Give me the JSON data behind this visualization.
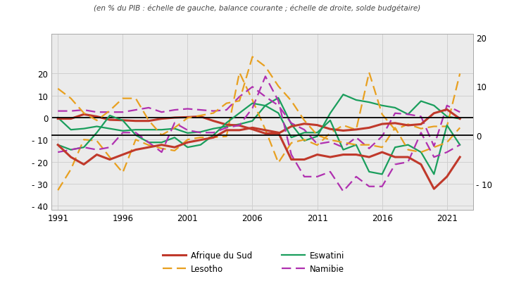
{
  "subtitle": "(en % du PIB : échelle de gauche, balance courante ; échelle de droite, solde budgétaire)",
  "years": [
    1991,
    1992,
    1993,
    1994,
    1995,
    1996,
    1997,
    1998,
    1999,
    2000,
    2001,
    2002,
    2003,
    2004,
    2005,
    2006,
    2007,
    2008,
    2009,
    2010,
    2011,
    2012,
    2013,
    2014,
    2015,
    2016,
    2017,
    2018,
    2019,
    2020,
    2021,
    2022
  ],
  "ca_zaf": [
    -0.5,
    -0.5,
    1.5,
    0.5,
    -1.0,
    -1.2,
    -1.5,
    -1.5,
    -0.5,
    0.0,
    0.2,
    0.5,
    -1.5,
    -3.2,
    -3.6,
    -5.3,
    -7.2,
    -7.2,
    -4.0,
    -2.8,
    -3.4,
    -5.2,
    -5.9,
    -5.4,
    -4.6,
    -2.9,
    -2.5,
    -3.5,
    -3.0,
    2.0,
    3.7,
    -0.5
  ],
  "ca_esw": [
    0.0,
    -5.5,
    -5.0,
    -4.0,
    -5.0,
    -6.0,
    -5.5,
    -5.5,
    -5.5,
    -5.0,
    -7.0,
    -6.5,
    -5.0,
    -4.0,
    -3.0,
    -1.5,
    5.5,
    9.0,
    -3.0,
    -10.5,
    -8.5,
    2.0,
    10.5,
    8.0,
    7.0,
    5.5,
    4.5,
    1.5,
    7.5,
    5.5,
    0.5,
    -0.5
  ],
  "ca_les": [
    -33.0,
    -23.5,
    -10.0,
    -10.5,
    -18.0,
    -25.0,
    -10.0,
    -12.5,
    -14.0,
    -15.0,
    -10.0,
    -9.0,
    -9.0,
    -8.5,
    20.5,
    8.0,
    -5.5,
    -20.5,
    -11.5,
    -10.0,
    -12.5,
    -7.0,
    -3.5,
    -5.5,
    20.5,
    1.5,
    -5.5,
    -3.0,
    -5.0,
    -4.0,
    -4.0,
    20.0
  ],
  "ca_nam": [
    3.0,
    3.0,
    3.5,
    2.5,
    2.5,
    2.5,
    3.5,
    4.5,
    2.5,
    3.5,
    4.0,
    3.5,
    3.0,
    3.5,
    9.5,
    14.0,
    9.5,
    5.5,
    -2.5,
    -5.5,
    -12.0,
    -11.0,
    -13.5,
    -9.0,
    -14.0,
    -8.5,
    2.0,
    1.5,
    0.5,
    -13.0,
    5.5,
    2.5
  ],
  "bb_zaf": [
    -2.0,
    -4.5,
    -6.0,
    -4.0,
    -5.0,
    -4.0,
    -3.0,
    -2.5,
    -2.0,
    -2.5,
    -1.5,
    -1.0,
    -0.5,
    1.0,
    1.0,
    1.5,
    1.0,
    0.5,
    -5.0,
    -5.0,
    -4.0,
    -4.5,
    -4.0,
    -4.0,
    -4.5,
    -3.5,
    -4.5,
    -4.5,
    -6.0,
    -11.0,
    -8.5,
    -4.5
  ],
  "bb_esw": [
    -2.0,
    -3.0,
    -2.5,
    0.5,
    4.0,
    3.0,
    0.0,
    -1.5,
    -1.5,
    -0.5,
    -2.5,
    -2.0,
    0.0,
    2.5,
    4.5,
    6.5,
    6.0,
    4.5,
    -0.5,
    0.5,
    0.5,
    3.0,
    -3.0,
    -2.0,
    -7.5,
    -8.0,
    -2.5,
    -2.0,
    -3.5,
    -8.0,
    2.0,
    -2.0
  ],
  "bb_les": [
    9.5,
    7.5,
    4.5,
    3.0,
    5.0,
    7.5,
    7.5,
    3.0,
    0.0,
    1.5,
    3.5,
    4.0,
    4.5,
    6.5,
    7.0,
    16.0,
    14.0,
    10.0,
    7.0,
    3.0,
    0.0,
    -1.0,
    -1.5,
    -2.0,
    -2.0,
    -2.5,
    1.5,
    -3.0,
    -3.5,
    -2.5,
    -1.5,
    1.5
  ],
  "bb_nam": [
    -3.5,
    -3.0,
    -2.5,
    -3.0,
    -2.5,
    0.5,
    0.5,
    -1.5,
    -3.5,
    2.5,
    1.0,
    0.5,
    0.5,
    1.5,
    2.0,
    5.5,
    12.0,
    7.0,
    -4.0,
    -8.5,
    -8.5,
    -7.5,
    -11.5,
    -8.5,
    -10.5,
    -10.5,
    -6.0,
    -5.5,
    0.5,
    -4.5,
    -3.5,
    -2.0
  ],
  "left_ylim": [
    -42,
    38
  ],
  "left_yticks": [
    -40,
    -30,
    -20,
    -10,
    0,
    10,
    20
  ],
  "right_ylim": [
    -15.333,
    20.667
  ],
  "right_yticks": [
    -10,
    0,
    10,
    20
  ],
  "xlim": [
    1990.5,
    2023.0
  ],
  "xticks": [
    1991,
    1996,
    2001,
    2006,
    2011,
    2016,
    2021
  ],
  "colors": {
    "zaf": "#c0392b",
    "esw": "#1a9e5c",
    "les": "#e8a020",
    "nam": "#b030b0"
  },
  "grid_color": "#d0d0d0",
  "bg_color": "#ebebeb"
}
